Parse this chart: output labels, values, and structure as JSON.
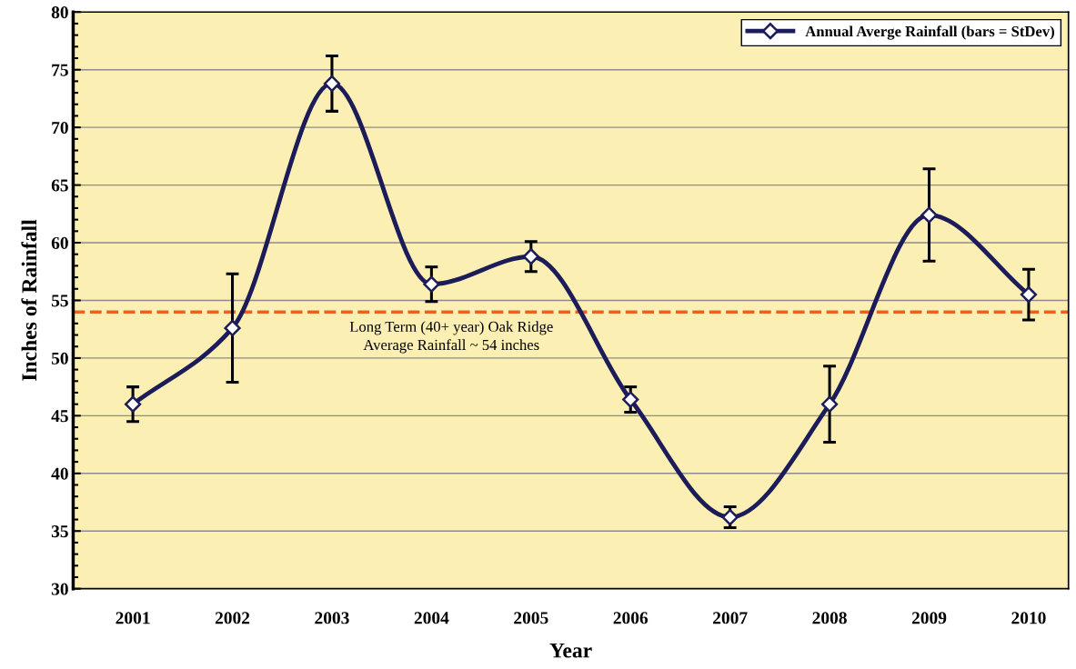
{
  "chart_data": {
    "type": "line",
    "xlabel": "Year",
    "ylabel": "Inches of Rainfall",
    "categories": [
      "2001",
      "2002",
      "2003",
      "2004",
      "2005",
      "2006",
      "2007",
      "2008",
      "2009",
      "2010"
    ],
    "series": [
      {
        "name": "Annual Averge Rainfall (bars = StDev)",
        "color": "#1c1c5a",
        "values": [
          46.0,
          52.6,
          73.8,
          56.4,
          58.8,
          46.4,
          36.2,
          46.0,
          62.4,
          55.5
        ],
        "errors": [
          1.5,
          4.7,
          2.4,
          1.5,
          1.3,
          1.1,
          0.9,
          3.3,
          4.0,
          2.2
        ]
      }
    ],
    "ylim": [
      30,
      80
    ],
    "yticks": [
      30,
      35,
      40,
      45,
      50,
      55,
      60,
      65,
      70,
      75,
      80
    ],
    "ref_lines": [
      {
        "axis": "y",
        "value": 54,
        "label": "Long Term (40+ year) Oak Ridge\nAverage Rainfall ~ 54 inches",
        "color": "#e8641e",
        "line_style": "dashed"
      }
    ],
    "grid": "y",
    "legend": "top right",
    "marker": "diamond",
    "line_style": "solid"
  }
}
